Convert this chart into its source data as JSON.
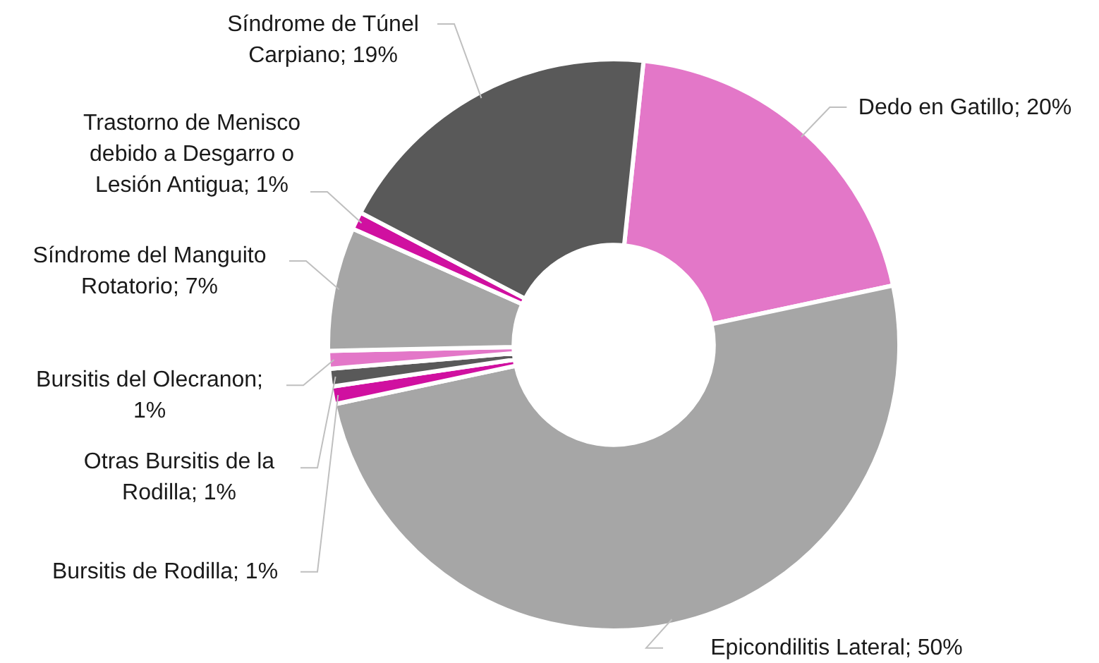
{
  "chart_data": {
    "type": "donut",
    "categories": [
      "Dedo en Gatillo; 20%",
      "Epicondilitis Lateral; 50%",
      "Bursitis de Rodilla; 1%",
      "Otras Bursitis de la Rodilla; 1%",
      "Bursitis del Olecranon; 1%",
      "Síndrome del Manguito Rotatorio; 7%",
      "Trastorno de Menisco debido a Desgarro o Lesión Antigua; 1%",
      "Síndrome de Túnel Carpiano; 19%"
    ],
    "values": [
      20,
      50,
      1,
      1,
      1,
      7,
      1,
      19
    ],
    "colors": [
      "#e377c8",
      "#a6a6a6",
      "#d010a0",
      "#595959",
      "#e377c8",
      "#a6a6a6",
      "#d010a0",
      "#595959"
    ],
    "legend": false
  }
}
